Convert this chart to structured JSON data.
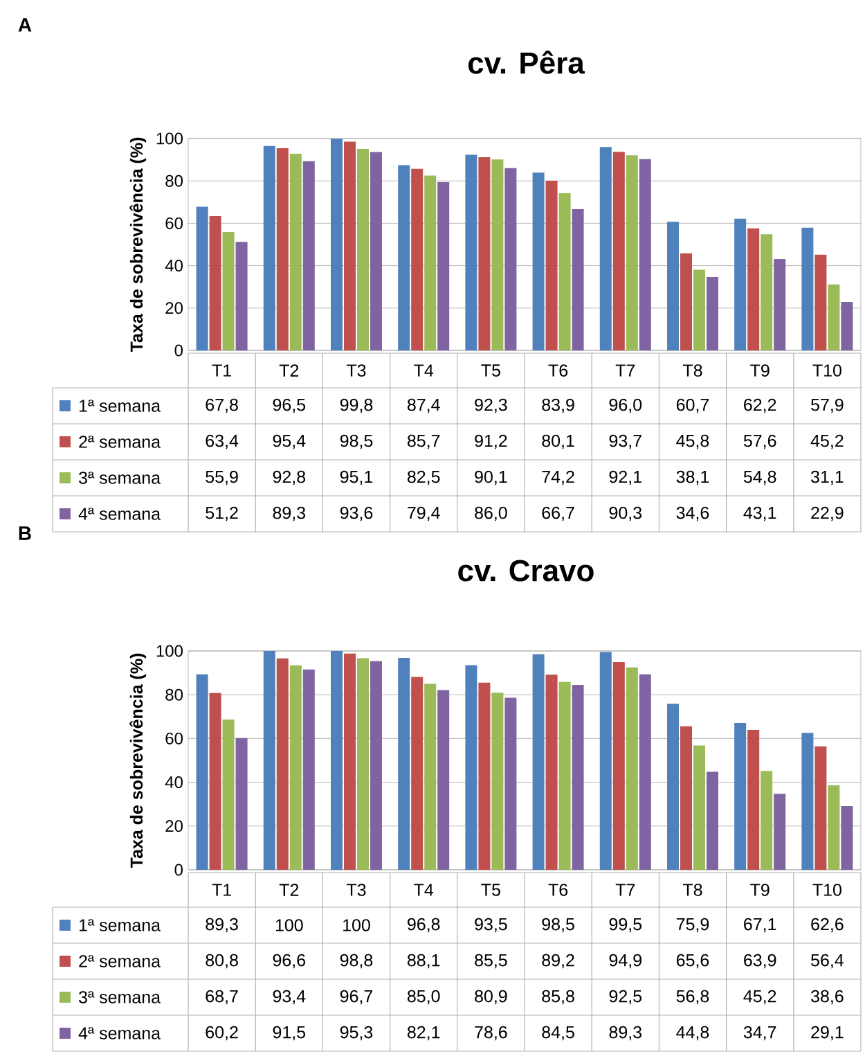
{
  "chart_data": [
    {
      "type": "bar",
      "title": "cv. Pêra",
      "ylabel": "Taxa de sobrevivência (%)",
      "annotations": [
        "A"
      ],
      "categories": [
        "T1",
        "T2",
        "T3",
        "T4",
        "T5",
        "T6",
        "T7",
        "T8",
        "T9",
        "T10"
      ],
      "series": [
        {
          "name": "1ª semana",
          "color": "#4f81bd",
          "values": [
            67.8,
            96.5,
            99.8,
            87.4,
            92.3,
            83.9,
            96.0,
            60.7,
            62.2,
            57.9
          ],
          "value_labels": [
            "67,8",
            "96,5",
            "99,8",
            "87,4",
            "92,3",
            "83,9",
            "96,0",
            "60,7",
            "62,2",
            "57,9"
          ]
        },
        {
          "name": "2ª semana",
          "color": "#c0504d",
          "values": [
            63.4,
            95.4,
            98.5,
            85.7,
            91.2,
            80.1,
            93.7,
            45.8,
            57.6,
            45.2
          ],
          "value_labels": [
            "63,4",
            "95,4",
            "98,5",
            "85,7",
            "91,2",
            "80,1",
            "93,7",
            "45,8",
            "57,6",
            "45,2"
          ]
        },
        {
          "name": "3ª semana",
          "color": "#9bbb59",
          "values": [
            55.9,
            92.8,
            95.1,
            82.5,
            90.1,
            74.2,
            92.1,
            38.1,
            54.8,
            31.1
          ],
          "value_labels": [
            "55,9",
            "92,8",
            "95,1",
            "82,5",
            "90,1",
            "74,2",
            "92,1",
            "38,1",
            "54,8",
            "31,1"
          ]
        },
        {
          "name": "4ª semana",
          "color": "#8064a2",
          "values": [
            51.2,
            89.3,
            93.6,
            79.4,
            86.0,
            66.7,
            90.3,
            34.6,
            43.1,
            22.9
          ],
          "value_labels": [
            "51,2",
            "89,3",
            "93,6",
            "79,4",
            "86,0",
            "66,7",
            "90,3",
            "34,6",
            "43,1",
            "22,9"
          ]
        }
      ],
      "ylim": [
        0,
        100
      ],
      "yticks": [
        0,
        20,
        40,
        60,
        80,
        100
      ],
      "grid": "y",
      "legend": "bottom"
    },
    {
      "type": "bar",
      "title": "cv. Cravo",
      "ylabel": "Taxa de sobrevivência (%)",
      "annotations": [
        "B"
      ],
      "categories": [
        "T1",
        "T2",
        "T3",
        "T4",
        "T5",
        "T6",
        "T7",
        "T8",
        "T9",
        "T10"
      ],
      "series": [
        {
          "name": "1ª semana",
          "color": "#4f81bd",
          "values": [
            89.3,
            100,
            100,
            96.8,
            93.5,
            98.5,
            99.5,
            75.9,
            67.1,
            62.6
          ],
          "value_labels": [
            "89,3",
            "100",
            "100",
            "96,8",
            "93,5",
            "98,5",
            "99,5",
            "75,9",
            "67,1",
            "62,6"
          ]
        },
        {
          "name": "2ª semana",
          "color": "#c0504d",
          "values": [
            80.8,
            96.6,
            98.8,
            88.1,
            85.5,
            89.2,
            94.9,
            65.6,
            63.9,
            56.4
          ],
          "value_labels": [
            "80,8",
            "96,6",
            "98,8",
            "88,1",
            "85,5",
            "89,2",
            "94,9",
            "65,6",
            "63,9",
            "56,4"
          ]
        },
        {
          "name": "3ª semana",
          "color": "#9bbb59",
          "values": [
            68.7,
            93.4,
            96.7,
            85.0,
            80.9,
            85.8,
            92.5,
            56.8,
            45.2,
            38.6
          ],
          "value_labels": [
            "68,7",
            "93,4",
            "96,7",
            "85,0",
            "80,9",
            "85,8",
            "92,5",
            "56,8",
            "45,2",
            "38,6"
          ]
        },
        {
          "name": "4ª semana",
          "color": "#8064a2",
          "values": [
            60.2,
            91.5,
            95.3,
            82.1,
            78.6,
            84.5,
            89.3,
            44.8,
            34.7,
            29.1
          ],
          "value_labels": [
            "60,2",
            "91,5",
            "95,3",
            "82,1",
            "78,6",
            "84,5",
            "89,3",
            "44,8",
            "34,7",
            "29,1"
          ]
        }
      ],
      "ylim": [
        0,
        100
      ],
      "yticks": [
        0,
        20,
        40,
        60,
        80,
        100
      ],
      "grid": "y",
      "legend": "bottom"
    }
  ]
}
